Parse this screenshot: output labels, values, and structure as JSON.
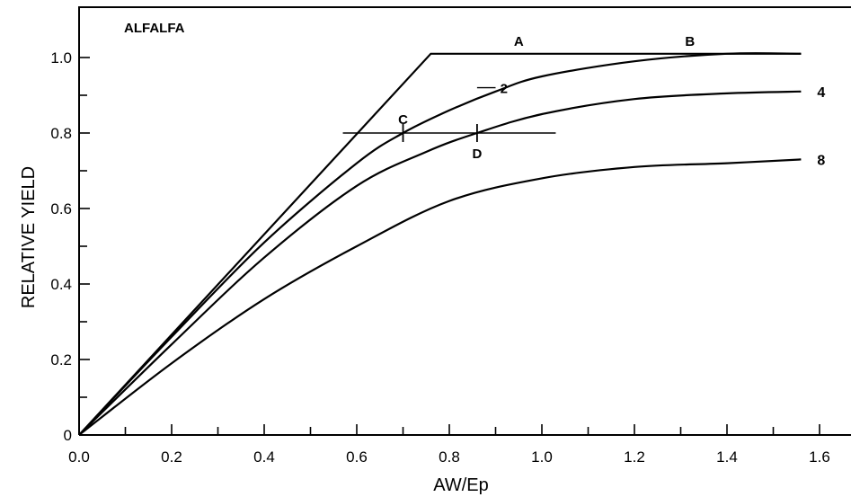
{
  "chart_data": {
    "type": "line",
    "title": "ALFALFA",
    "xlabel": "AW/Ep",
    "ylabel": "RELATIVE YIELD",
    "xlim": [
      0,
      1.65
    ],
    "ylim": [
      0,
      1.1
    ],
    "xticks": [
      "0.0",
      "0.2",
      "0.4",
      "0.6",
      "0.8",
      "1.0",
      "1.2",
      "1.4",
      "1.6"
    ],
    "yticks": [
      "0",
      "0.2",
      "0.4",
      "0.6",
      "0.8",
      "1.0"
    ],
    "grid": false,
    "series": [
      {
        "name": "",
        "x": [
          0.0,
          0.76,
          1.56
        ],
        "y": [
          0.0,
          1.01,
          1.01
        ]
      },
      {
        "name": "2",
        "x": [
          0.0,
          0.2,
          0.4,
          0.6,
          0.7,
          0.8,
          0.9,
          1.0,
          1.2,
          1.4,
          1.56
        ],
        "y": [
          0.0,
          0.26,
          0.51,
          0.72,
          0.8,
          0.86,
          0.91,
          0.95,
          0.99,
          1.01,
          1.01
        ]
      },
      {
        "name": "4",
        "x": [
          0.0,
          0.2,
          0.4,
          0.6,
          0.75,
          0.86,
          1.0,
          1.2,
          1.4,
          1.56
        ],
        "y": [
          0.0,
          0.24,
          0.47,
          0.66,
          0.75,
          0.8,
          0.85,
          0.89,
          0.905,
          0.91
        ]
      },
      {
        "name": "8",
        "x": [
          0.0,
          0.2,
          0.4,
          0.6,
          0.8,
          1.0,
          1.2,
          1.4,
          1.56
        ],
        "y": [
          0.0,
          0.19,
          0.36,
          0.5,
          0.62,
          0.68,
          0.71,
          0.72,
          0.73
        ]
      }
    ],
    "reference_line": {
      "x": [
        0.57,
        1.03
      ],
      "y": [
        0.8,
        0.8
      ]
    },
    "marked_points": [
      {
        "label": "C",
        "x": 0.7,
        "y": 0.8
      },
      {
        "label": "D",
        "x": 0.86,
        "y": 0.8
      }
    ],
    "annotations": [
      {
        "text": "A",
        "x": 0.95,
        "y": 1.01
      },
      {
        "text": "B",
        "x": 1.32,
        "y": 1.01
      }
    ]
  }
}
